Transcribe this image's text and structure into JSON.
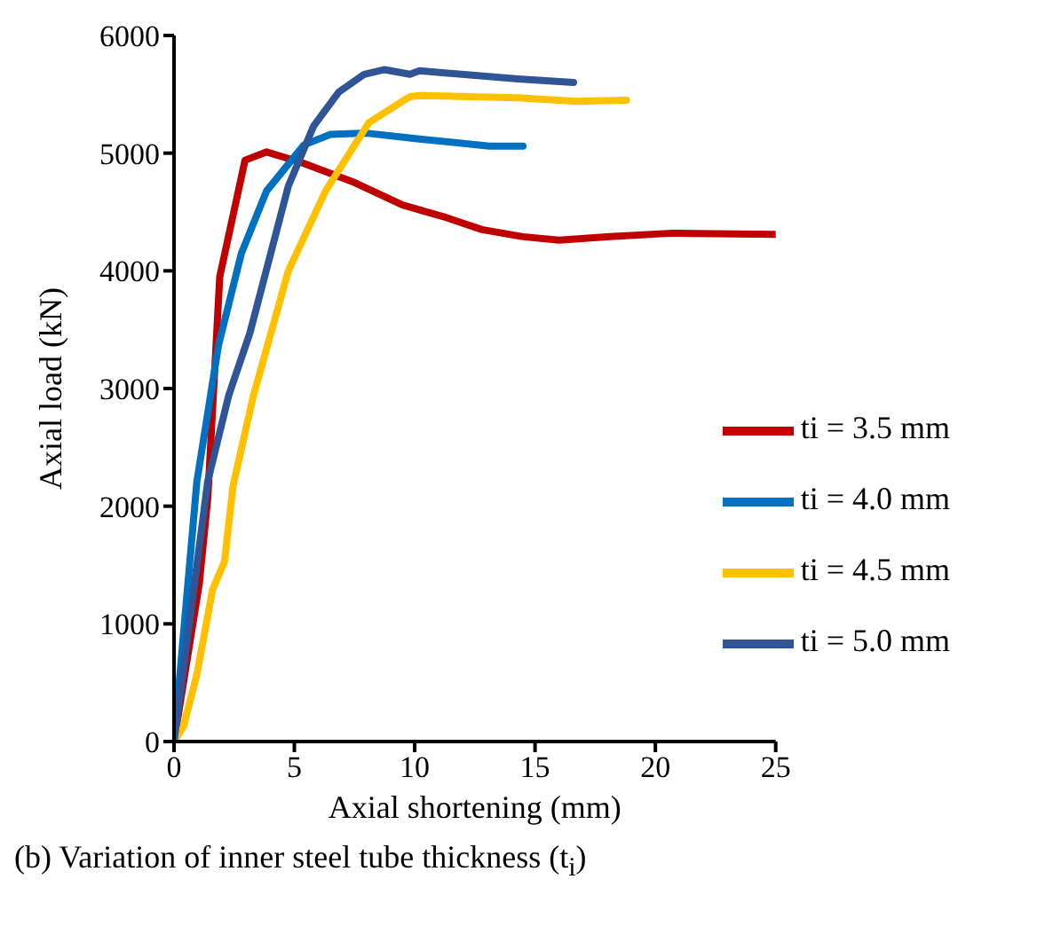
{
  "chart_data": {
    "type": "line",
    "xlabel": "Axial shortening (mm)",
    "ylabel": "Axial load (kN)",
    "annotations": [
      "(b) Variation of inner steel tube thickness (t$_{i}$)"
    ],
    "xlim": [
      0,
      25
    ],
    "xticks": [
      0,
      5,
      10,
      15,
      20,
      25
    ],
    "ylim": [
      0,
      6000
    ],
    "yticks": [
      0,
      1000,
      2000,
      3000,
      4000,
      5000,
      6000
    ],
    "grid": false,
    "legend": "bottom right",
    "marker": "none",
    "line_style": "solid",
    "series": [
      {
        "name": "ti = 3.5 mm",
        "color": "#c00000",
        "x": [
          0,
          1.05,
          1.4,
          1.9,
          2.95,
          3.85,
          5.3,
          7.5,
          9.5,
          11.2,
          12.8,
          14.5,
          16,
          18.1,
          20.7,
          25
        ],
        "values": [
          0,
          1340,
          2060,
          3950,
          4940,
          5010,
          4920,
          4750,
          4560,
          4460,
          4350,
          4290,
          4260,
          4290,
          4320,
          4310
        ]
      },
      {
        "name": "ti = 4.0 mm",
        "color": "#0070c0",
        "x": [
          0,
          0.95,
          1.85,
          2.8,
          3.85,
          5.4,
          6.5,
          8,
          10.2,
          13.1,
          14.5
        ],
        "values": [
          0,
          2210,
          3370,
          4150,
          4680,
          5070,
          5160,
          5170,
          5120,
          5060,
          5060
        ]
      },
      {
        "name": "ti = 4.5 mm",
        "color": "#ffc000",
        "x": [
          0,
          0.4,
          0.95,
          1.6,
          2.1,
          2.45,
          3.3,
          4.75,
          6.3,
          8.1,
          9.8,
          10.2,
          14.3,
          16.7,
          18.8
        ],
        "values": [
          0,
          130,
          570,
          1290,
          1530,
          2170,
          2940,
          4000,
          4680,
          5260,
          5480,
          5490,
          5470,
          5440,
          5450
        ]
      },
      {
        "name": "ti = 5.0 mm",
        "color": "#2f5597",
        "x": [
          0,
          1.4,
          2.27,
          3.15,
          4.75,
          5.8,
          6.85,
          7.9,
          8.75,
          9.8,
          10.2,
          14.3,
          16.6
        ],
        "values": [
          0,
          2210,
          2940,
          3470,
          4720,
          5230,
          5520,
          5670,
          5710,
          5670,
          5700,
          5630,
          5600
        ]
      }
    ]
  }
}
